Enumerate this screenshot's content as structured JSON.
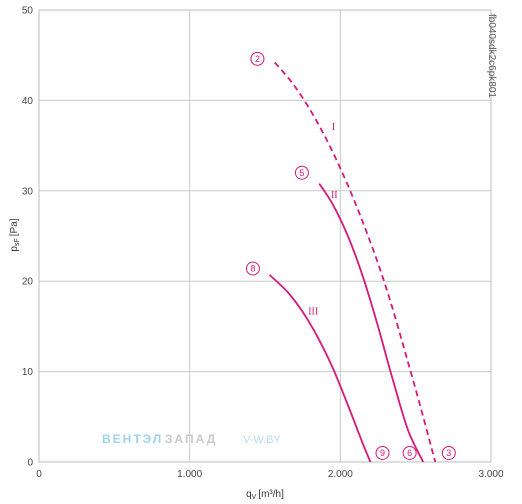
{
  "chart_data": {
    "type": "line",
    "xlabel": "q",
    "xlabel_sub": "V",
    "xlabel_unit": "[m³/h]",
    "ylabel": "p",
    "ylabel_sub": "sF",
    "ylabel_unit": "[Pa]",
    "xlim": [
      0,
      3000
    ],
    "ylim": [
      0,
      50
    ],
    "grid": true,
    "x_ticks": [
      0,
      1000,
      2000,
      3000
    ],
    "x_tick_labels": [
      "0",
      "1.000",
      "2.000",
      "3.000"
    ],
    "y_ticks": [
      0,
      10,
      20,
      30,
      40,
      50
    ],
    "y_tick_labels": [
      "0",
      "10",
      "20",
      "30",
      "40",
      "50"
    ],
    "series": [
      {
        "name": "I",
        "style": "dashed",
        "points": [
          [
            1565,
            44.2
          ],
          [
            1700,
            41.5
          ],
          [
            1850,
            37.5
          ],
          [
            2000,
            32.5
          ],
          [
            2150,
            26.5
          ],
          [
            2300,
            19.5
          ],
          [
            2450,
            11.0
          ],
          [
            2550,
            5.0
          ],
          [
            2630,
            0
          ]
        ]
      },
      {
        "name": "II",
        "style": "solid",
        "points": [
          [
            1860,
            30.8
          ],
          [
            1950,
            28.5
          ],
          [
            2050,
            25.0
          ],
          [
            2150,
            20.5
          ],
          [
            2250,
            15.0
          ],
          [
            2350,
            9.0
          ],
          [
            2450,
            3.5
          ],
          [
            2550,
            0
          ]
        ]
      },
      {
        "name": "III",
        "style": "solid",
        "points": [
          [
            1530,
            20.7
          ],
          [
            1650,
            18.8
          ],
          [
            1750,
            16.6
          ],
          [
            1850,
            13.8
          ],
          [
            1950,
            10.4
          ],
          [
            2050,
            6.3
          ],
          [
            2150,
            2.0
          ],
          [
            2200,
            0
          ]
        ]
      }
    ],
    "series_labels": [
      {
        "text": "I",
        "x": 1955,
        "y": 36.7
      },
      {
        "text": "II",
        "x": 1960,
        "y": 29.2
      },
      {
        "text": "III",
        "x": 1820,
        "y": 16.3
      }
    ],
    "markers": [
      {
        "text": "2",
        "x": 1450,
        "y": 44.6
      },
      {
        "text": "5",
        "x": 1745,
        "y": 32.0
      },
      {
        "text": "8",
        "x": 1420,
        "y": 21.4
      },
      {
        "text": "9",
        "x": 2280,
        "y": 1.0
      },
      {
        "text": "6",
        "x": 2460,
        "y": 1.0
      },
      {
        "text": "3",
        "x": 2720,
        "y": 1.0
      }
    ],
    "code_label": "fb040sdk2c6pk801",
    "watermark": {
      "part1": "ВЕНТЭЛ",
      "part2": "ЗАПАД",
      "part3": "V-W.BY"
    },
    "colors": {
      "curve": "#d6197b",
      "grid": "#c8c8c8"
    }
  }
}
